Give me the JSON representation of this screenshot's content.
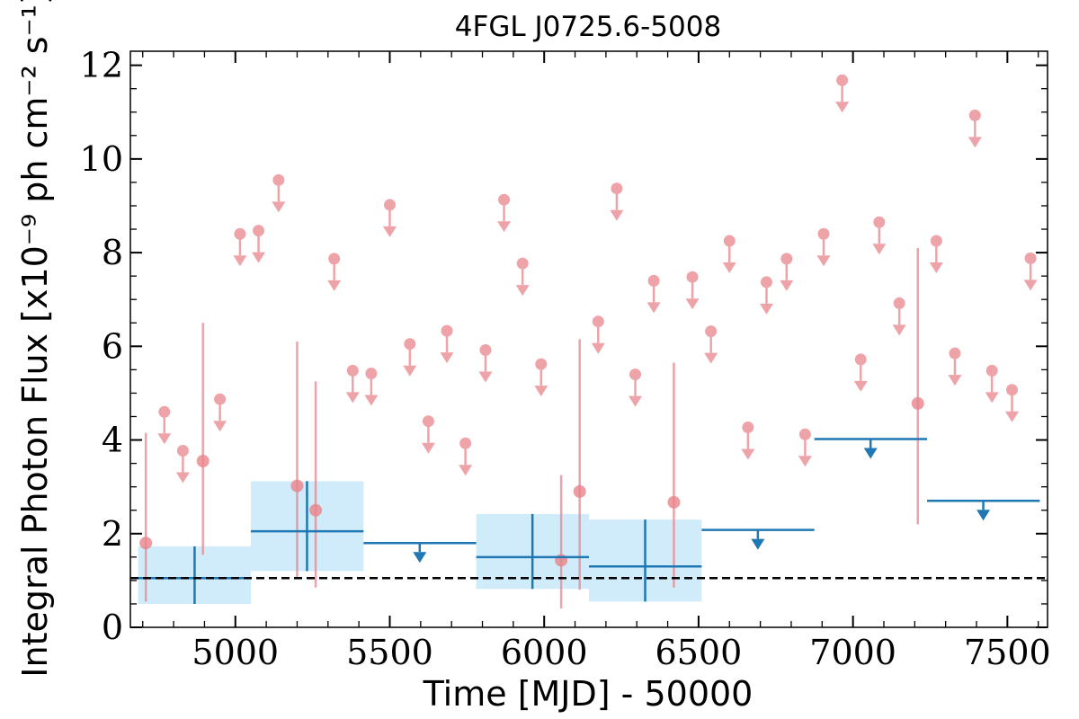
{
  "chart_data": {
    "type": "scatter",
    "title": "4FGL J0725.6-5008",
    "xlabel": "Time [MJD] - 50000",
    "ylabel": "Integral Photon Flux [x10⁻⁹ ph cm⁻² s⁻¹]",
    "xlim": [
      4660,
      7630
    ],
    "ylim": [
      0,
      12.3
    ],
    "xticks": [
      5000,
      5500,
      6000,
      6500,
      7000,
      7500
    ],
    "yticks": [
      0,
      2,
      4,
      6,
      8,
      10,
      12
    ],
    "grid": false,
    "reference_line": {
      "y": 1.05,
      "style": "dashed"
    },
    "colors": {
      "short_bins": "#e8858b",
      "long_bins": "#1f77b4",
      "long_bin_error_box": "#cdebfa",
      "reference": "#000000"
    },
    "series": [
      {
        "bin_width": 60,
        "detections": [
          {
            "x": 4710,
            "y": 1.8,
            "ylow": 0.55,
            "yhigh": 4.15
          },
          {
            "x": 4895,
            "y": 3.55,
            "ylow": 1.55,
            "yhigh": 6.5
          },
          {
            "x": 5200,
            "y": 3.02,
            "ylow": 1.05,
            "yhigh": 6.1
          },
          {
            "x": 5260,
            "y": 2.5,
            "ylow": 0.85,
            "yhigh": 5.25
          },
          {
            "x": 6055,
            "y": 1.43,
            "ylow": 0.4,
            "yhigh": 3.25
          },
          {
            "x": 6115,
            "y": 2.9,
            "ylow": 0.8,
            "yhigh": 6.15
          },
          {
            "x": 6420,
            "y": 2.67,
            "ylow": 0.85,
            "yhigh": 5.65
          },
          {
            "x": 7210,
            "y": 4.78,
            "ylow": 2.2,
            "yhigh": 8.1
          }
        ],
        "upper_limits": [
          {
            "x": 4770,
            "y": 4.6
          },
          {
            "x": 4830,
            "y": 3.77
          },
          {
            "x": 4950,
            "y": 4.87
          },
          {
            "x": 5015,
            "y": 8.4
          },
          {
            "x": 5075,
            "y": 8.47
          },
          {
            "x": 5140,
            "y": 9.55
          },
          {
            "x": 5320,
            "y": 7.87
          },
          {
            "x": 5380,
            "y": 5.48
          },
          {
            "x": 5440,
            "y": 5.42
          },
          {
            "x": 5500,
            "y": 9.02
          },
          {
            "x": 5565,
            "y": 6.05
          },
          {
            "x": 5625,
            "y": 4.4
          },
          {
            "x": 5685,
            "y": 6.33
          },
          {
            "x": 5745,
            "y": 3.93
          },
          {
            "x": 5810,
            "y": 5.92
          },
          {
            "x": 5870,
            "y": 9.13
          },
          {
            "x": 5930,
            "y": 7.77
          },
          {
            "x": 5990,
            "y": 5.62
          },
          {
            "x": 6175,
            "y": 6.53
          },
          {
            "x": 6235,
            "y": 9.37
          },
          {
            "x": 6295,
            "y": 5.4
          },
          {
            "x": 6355,
            "y": 7.4
          },
          {
            "x": 6480,
            "y": 7.48
          },
          {
            "x": 6540,
            "y": 6.32
          },
          {
            "x": 6600,
            "y": 8.25
          },
          {
            "x": 6660,
            "y": 4.27
          },
          {
            "x": 6720,
            "y": 7.37
          },
          {
            "x": 6785,
            "y": 7.87
          },
          {
            "x": 6845,
            "y": 4.12
          },
          {
            "x": 6905,
            "y": 8.4
          },
          {
            "x": 6965,
            "y": 11.68
          },
          {
            "x": 7025,
            "y": 5.72
          },
          {
            "x": 7085,
            "y": 8.65
          },
          {
            "x": 7150,
            "y": 6.92
          },
          {
            "x": 7330,
            "y": 5.85
          },
          {
            "x": 7270,
            "y": 8.25
          },
          {
            "x": 7395,
            "y": 10.93
          },
          {
            "x": 7450,
            "y": 5.48
          },
          {
            "x": 7515,
            "y": 5.07
          },
          {
            "x": 7575,
            "y": 7.88
          }
        ]
      },
      {
        "bin_width": 365,
        "detections": [
          {
            "x": 4868,
            "x0": 4685,
            "x1": 5050,
            "y": 1.05,
            "ylow": 0.5,
            "yhigh": 1.73
          },
          {
            "x": 5232,
            "x0": 5050,
            "x1": 5415,
            "y": 2.05,
            "ylow": 1.2,
            "yhigh": 3.12
          },
          {
            "x": 5962,
            "x0": 5780,
            "x1": 6145,
            "y": 1.5,
            "ylow": 0.82,
            "yhigh": 2.42
          },
          {
            "x": 6327,
            "x0": 6145,
            "x1": 6510,
            "y": 1.3,
            "ylow": 0.55,
            "yhigh": 2.3
          }
        ],
        "upper_limits": [
          {
            "x": 5597,
            "x0": 5415,
            "x1": 5780,
            "y": 1.8
          },
          {
            "x": 6692,
            "x0": 6510,
            "x1": 6875,
            "y": 2.08
          },
          {
            "x": 7057,
            "x0": 6875,
            "x1": 7240,
            "y": 4.02
          },
          {
            "x": 7422,
            "x0": 7240,
            "x1": 7605,
            "y": 2.7
          }
        ]
      }
    ]
  }
}
